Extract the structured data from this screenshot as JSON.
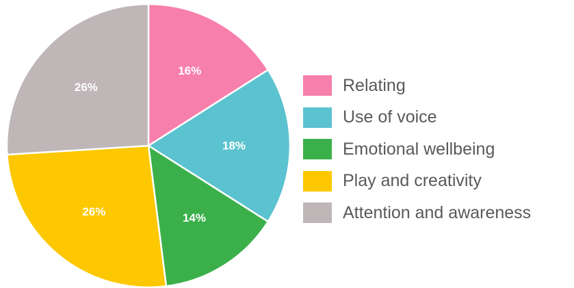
{
  "chart_data": {
    "type": "pie",
    "legend_position": "right",
    "slices": [
      {
        "name": "Relating",
        "value": 16,
        "label": "16%",
        "color": "#f77fab"
      },
      {
        "name": "Use of voice",
        "value": 18,
        "label": "18%",
        "color": "#5bc2cf"
      },
      {
        "name": "Emotional wellbeing",
        "value": 14,
        "label": "14%",
        "color": "#3bb04a"
      },
      {
        "name": "Play and creativity",
        "value": 26,
        "label": "26%",
        "color": "#fdc800"
      },
      {
        "name": "Attention and awareness",
        "value": 26,
        "label": "26%",
        "color": "#bfb6b8"
      }
    ]
  }
}
